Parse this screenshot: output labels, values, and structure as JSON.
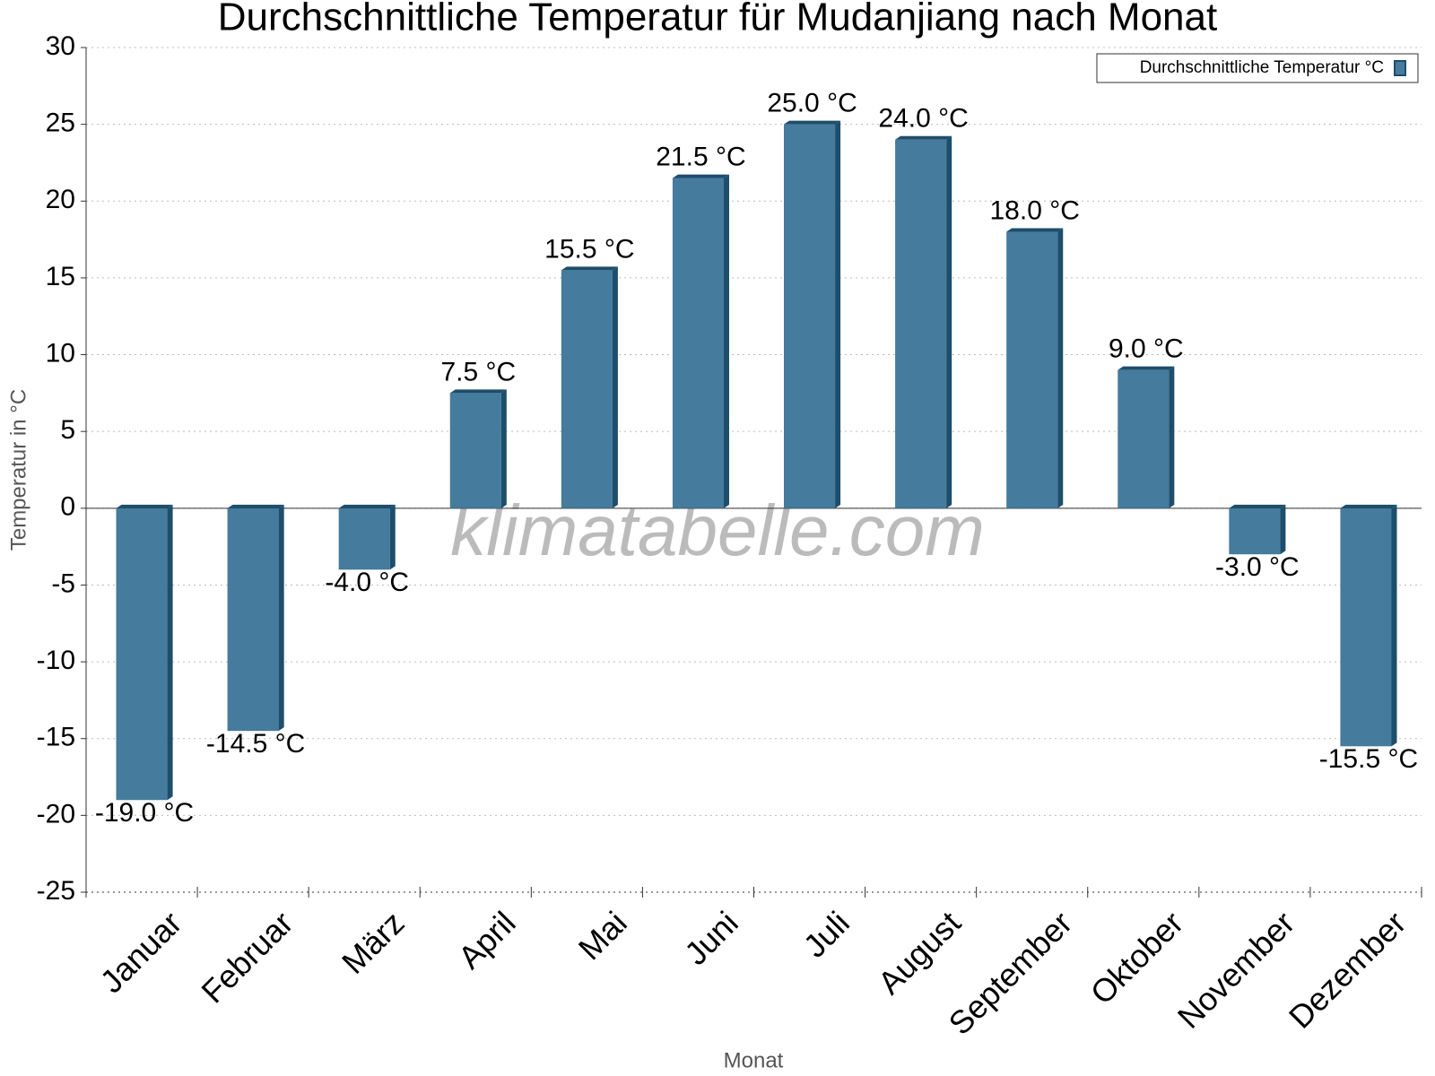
{
  "chart_data": {
    "type": "bar",
    "title": "Durchschnittliche Temperatur für Mudanjiang nach Monat",
    "x_label": "Monat",
    "y_label": "Temperatur in °C",
    "watermark": "klimatabelle.com",
    "categories": [
      "Januar",
      "Februar",
      "März",
      "April",
      "Mai",
      "Juni",
      "Juli",
      "August",
      "September",
      "Oktober",
      "November",
      "Dezember"
    ],
    "series": [
      {
        "name": "Durchschnittliche Temperatur °C",
        "color": "#457b9d",
        "values": [
          -19.0,
          -14.5,
          -4.0,
          7.5,
          15.5,
          21.5,
          25.0,
          24.0,
          18.0,
          9.0,
          -3.0,
          -15.5
        ],
        "value_labels": [
          "-19.0 °C",
          "-14.5 °C",
          "-4.0 °C",
          "7.5 °C",
          "15.5 °C",
          "21.5 °C",
          "25.0 °C",
          "24.0 °C",
          "18.0 °C",
          "9.0 °C",
          "-3.0 °C",
          "-15.5 °C"
        ]
      }
    ],
    "ylim": [
      -25,
      30
    ],
    "yticks": [
      -25,
      -20,
      -15,
      -10,
      -5,
      0,
      5,
      10,
      15,
      20,
      25,
      30
    ],
    "grid": true,
    "legend": "upper right"
  }
}
